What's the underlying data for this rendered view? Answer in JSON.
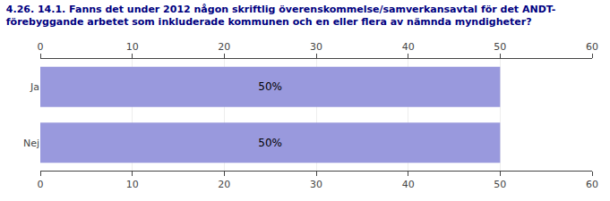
{
  "chart_data": {
    "type": "bar",
    "orientation": "horizontal",
    "title": "4.26. 14.1. Fanns det under 2012 någon skriftlig överenskommelse/samverkansavtal för det ANDT-\nförebyggande arbetet som inkluderade kommunen och en eller flera av nämnda myndigheter?",
    "categories": [
      "Ja",
      "Nej"
    ],
    "values": [
      50,
      50
    ],
    "value_labels": [
      "50%",
      "50%"
    ],
    "data_labels": true,
    "color": "#9999dd",
    "xlim": [
      0,
      60
    ],
    "xticks": [
      0,
      10,
      20,
      30,
      40,
      50,
      60
    ],
    "grid": true
  }
}
